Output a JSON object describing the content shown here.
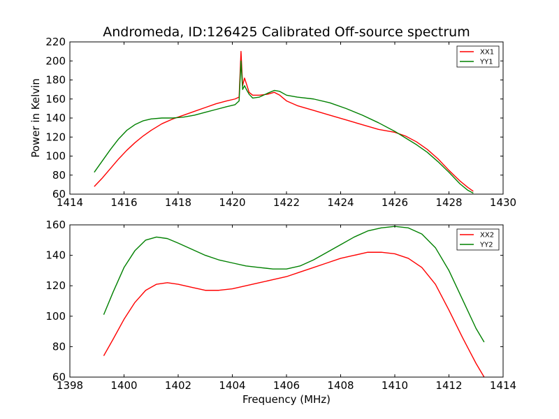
{
  "figure": {
    "title": "Andromeda, ID:126425 Calibrated Off-source spectrum",
    "xlabel": "Frequency (MHz)",
    "ylabel": "Power in Kelvin"
  },
  "chart_data": [
    {
      "type": "line",
      "title": "Andromeda, ID:126425 Calibrated Off-source spectrum",
      "xlabel": "",
      "ylabel": "Power in Kelvin",
      "xlim": [
        1414,
        1430
      ],
      "ylim": [
        60,
        220
      ],
      "xticks": [
        1414,
        1416,
        1418,
        1420,
        1422,
        1424,
        1426,
        1428,
        1430
      ],
      "yticks": [
        60,
        80,
        100,
        120,
        140,
        160,
        180,
        200,
        220
      ],
      "grid": false,
      "legend": "top-right",
      "series": [
        {
          "name": "XX1",
          "color": "#ff0000",
          "x": [
            1414.9,
            1415.2,
            1415.5,
            1415.8,
            1416.1,
            1416.4,
            1416.7,
            1417.0,
            1417.4,
            1417.8,
            1418.2,
            1418.6,
            1419.0,
            1419.4,
            1419.8,
            1420.1,
            1420.25,
            1420.32,
            1420.38,
            1420.45,
            1420.52,
            1420.62,
            1420.75,
            1421.0,
            1421.3,
            1421.55,
            1421.75,
            1422.0,
            1422.4,
            1423.0,
            1423.6,
            1424.2,
            1424.8,
            1425.4,
            1426.0,
            1426.4,
            1426.8,
            1427.2,
            1427.6,
            1428.0,
            1428.4,
            1428.7,
            1428.9
          ],
          "y": [
            68,
            77,
            87,
            97,
            106,
            114,
            121,
            127,
            134,
            139,
            143,
            147,
            151,
            155,
            158,
            160,
            162,
            210,
            174,
            182,
            176,
            167,
            164,
            164,
            165,
            167,
            164,
            158,
            153,
            148,
            143,
            138,
            133,
            128,
            125,
            121,
            115,
            107,
            97,
            85,
            74,
            67,
            63
          ]
        },
        {
          "name": "YY1",
          "color": "#008000",
          "x": [
            1414.9,
            1415.2,
            1415.5,
            1415.8,
            1416.1,
            1416.4,
            1416.7,
            1417.0,
            1417.4,
            1417.8,
            1418.2,
            1418.6,
            1419.0,
            1419.4,
            1419.8,
            1420.1,
            1420.25,
            1420.32,
            1420.38,
            1420.45,
            1420.52,
            1420.62,
            1420.75,
            1421.0,
            1421.3,
            1421.55,
            1421.75,
            1422.0,
            1422.4,
            1423.0,
            1423.6,
            1424.2,
            1424.8,
            1425.4,
            1426.0,
            1426.4,
            1426.8,
            1427.2,
            1427.6,
            1428.0,
            1428.4,
            1428.7,
            1428.9
          ],
          "y": [
            83,
            95,
            107,
            118,
            127,
            133,
            137,
            139,
            140,
            140,
            141,
            143,
            146,
            149,
            152,
            154,
            158,
            200,
            170,
            174,
            170,
            165,
            161,
            162,
            166,
            169,
            168,
            164,
            162,
            160,
            156,
            150,
            143,
            135,
            126,
            119,
            112,
            104,
            94,
            83,
            71,
            64,
            61
          ]
        }
      ]
    },
    {
      "type": "line",
      "title": "",
      "xlabel": "Frequency (MHz)",
      "ylabel": "",
      "xlim": [
        1398,
        1414
      ],
      "ylim": [
        60,
        160
      ],
      "xticks": [
        1398,
        1400,
        1402,
        1404,
        1406,
        1408,
        1410,
        1412,
        1414
      ],
      "yticks": [
        60,
        80,
        100,
        120,
        140,
        160
      ],
      "grid": false,
      "legend": "top-right",
      "series": [
        {
          "name": "XX2",
          "color": "#ff0000",
          "x": [
            1399.25,
            1399.6,
            1400.0,
            1400.4,
            1400.8,
            1401.2,
            1401.6,
            1402.0,
            1402.5,
            1403.0,
            1403.5,
            1404.0,
            1404.5,
            1405.0,
            1405.5,
            1406.0,
            1406.5,
            1407.0,
            1407.5,
            1408.0,
            1408.5,
            1409.0,
            1409.5,
            1410.0,
            1410.5,
            1411.0,
            1411.5,
            1412.0,
            1412.5,
            1413.0,
            1413.3
          ],
          "y": [
            74,
            85,
            98,
            109,
            117,
            121,
            122,
            121,
            119,
            117,
            117,
            118,
            120,
            122,
            124,
            126,
            129,
            132,
            135,
            138,
            140,
            142,
            142,
            141,
            138,
            132,
            121,
            104,
            86,
            69,
            60
          ]
        },
        {
          "name": "YY2",
          "color": "#008000",
          "x": [
            1399.25,
            1399.6,
            1400.0,
            1400.4,
            1400.8,
            1401.2,
            1401.6,
            1402.0,
            1402.5,
            1403.0,
            1403.5,
            1404.0,
            1404.5,
            1405.0,
            1405.5,
            1406.0,
            1406.5,
            1407.0,
            1407.5,
            1408.0,
            1408.5,
            1409.0,
            1409.5,
            1410.0,
            1410.5,
            1411.0,
            1411.5,
            1412.0,
            1412.5,
            1413.0,
            1413.3
          ],
          "y": [
            101,
            116,
            132,
            143,
            150,
            152,
            151,
            148,
            144,
            140,
            137,
            135,
            133,
            132,
            131,
            131,
            133,
            137,
            142,
            147,
            152,
            156,
            158,
            159,
            158,
            154,
            145,
            130,
            111,
            92,
            83
          ]
        }
      ]
    }
  ]
}
